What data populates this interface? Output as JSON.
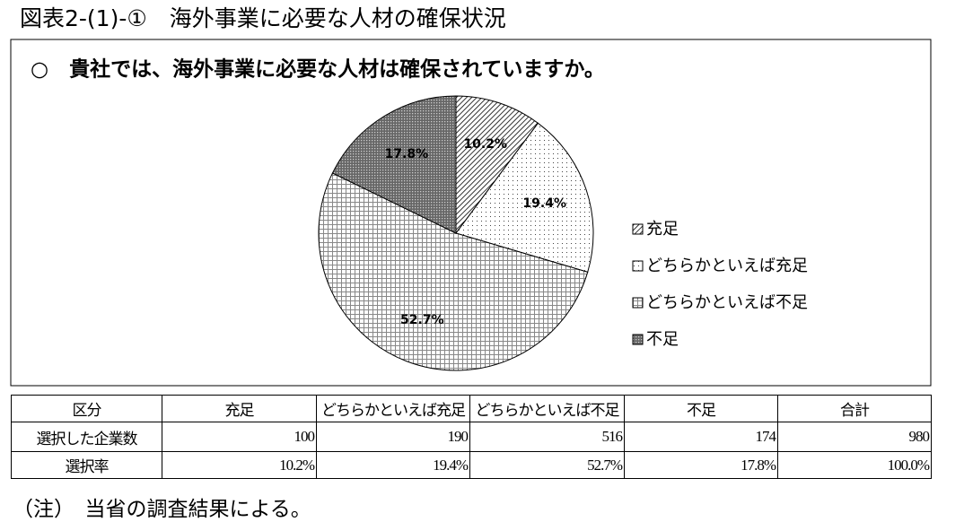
{
  "figure_title": "図表2-(1)-①　海外事業に必要な人材の確保状況",
  "chart_data": {
    "type": "pie",
    "title": "○　貴社では、海外事業に必要な人材は確保されていますか。",
    "categories": [
      "充足",
      "どちらかといえば充足",
      "どちらかといえば不足",
      "不足"
    ],
    "values": [
      10.2,
      19.4,
      52.7,
      17.8
    ],
    "value_labels": [
      "10.2%",
      "19.4%",
      "52.7%",
      "17.8%"
    ]
  },
  "table": {
    "header": [
      "区分",
      "充足",
      "どちらかといえば充足",
      "どちらかといえば不足",
      "不足",
      "合計"
    ],
    "rows": [
      [
        "選択した企業数",
        100,
        190,
        516,
        174,
        980
      ],
      [
        "選択率",
        "10.2%",
        "19.4%",
        "52.7%",
        "17.8%",
        "100.0%"
      ]
    ]
  },
  "note": "（注）　当省の調査結果による。"
}
